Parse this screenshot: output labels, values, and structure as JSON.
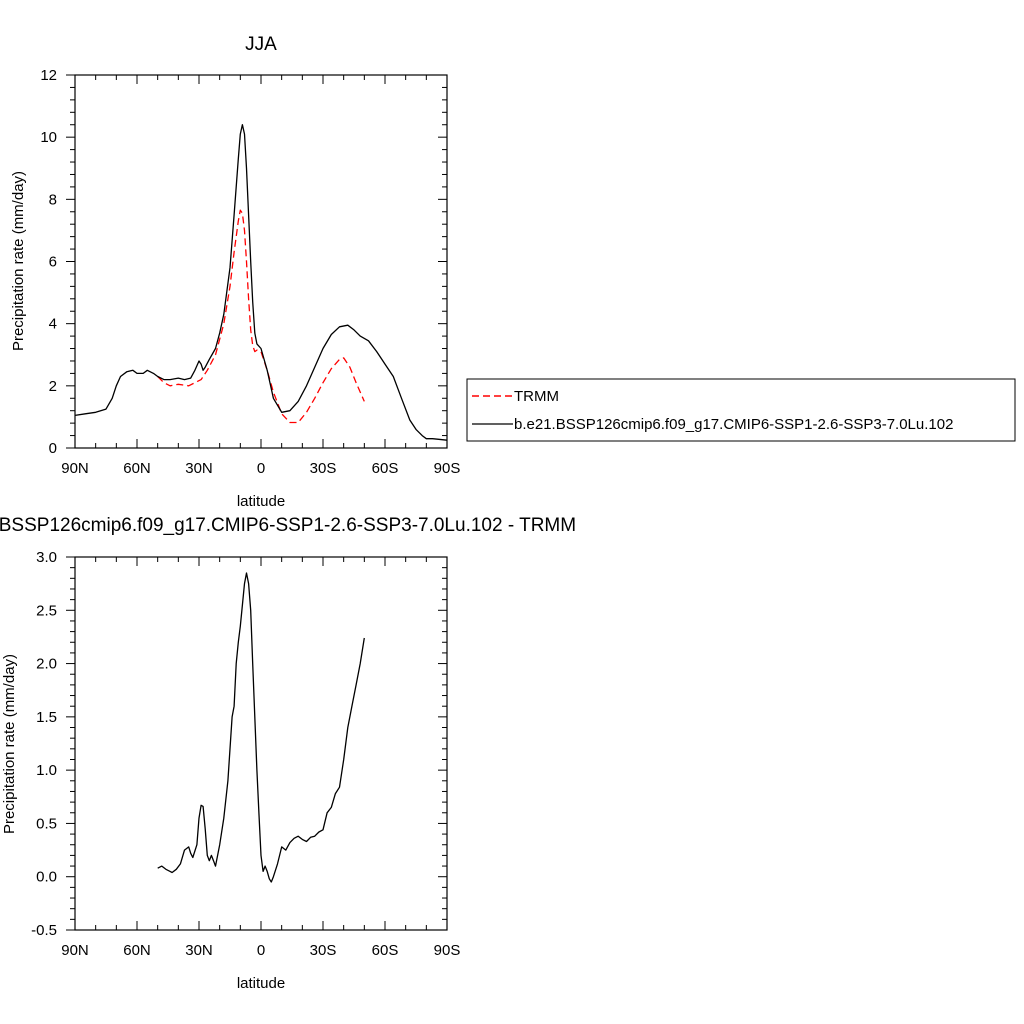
{
  "chart_data": [
    {
      "type": "line",
      "title": "JJA",
      "xlabel": "latitude",
      "ylabel": "Precipitation rate (mm/day)",
      "xlim": [
        90,
        -90
      ],
      "ylim": [
        0,
        12
      ],
      "x_ticks": [
        90,
        60,
        30,
        0,
        -30,
        -60,
        -90
      ],
      "x_tick_labels": [
        "90N",
        "60N",
        "30N",
        "0",
        "30S",
        "60S",
        "90S"
      ],
      "y_ticks": [
        0,
        2,
        4,
        6,
        8,
        10,
        12
      ],
      "y_tick_labels": [
        "0",
        "2",
        "4",
        "6",
        "8",
        "10",
        "12"
      ],
      "legend_position": "right",
      "series": [
        {
          "name": "TRMM",
          "style": "dashed",
          "color": "#ff0000",
          "x": [
            50,
            47,
            44,
            40,
            35,
            32,
            29,
            26,
            22,
            18,
            15,
            13,
            11,
            10,
            9,
            8,
            7,
            6,
            5,
            4,
            3,
            2,
            0,
            -3,
            -6,
            -10,
            -14,
            -18,
            -22,
            -26,
            -30,
            -34,
            -38,
            -40,
            -43,
            -46,
            -50
          ],
          "y": [
            2.3,
            2.1,
            2.0,
            2.05,
            2.0,
            2.1,
            2.2,
            2.5,
            3.0,
            4.0,
            5.2,
            6.3,
            7.3,
            7.65,
            7.55,
            7.0,
            6.0,
            4.8,
            3.8,
            3.3,
            3.1,
            3.15,
            3.1,
            2.5,
            1.8,
            1.1,
            0.82,
            0.82,
            1.15,
            1.6,
            2.1,
            2.55,
            2.85,
            2.9,
            2.6,
            2.1,
            1.5
          ]
        },
        {
          "name": "b.e21.BSSP126cmip6.f09_g17.CMIP6-SSP1-2.6-SSP3-7.0Lu.102",
          "style": "solid",
          "color": "#000000",
          "x": [
            90,
            85,
            80,
            75,
            72,
            70,
            68,
            65,
            62,
            60,
            57,
            55,
            52,
            50,
            47,
            44,
            40,
            37,
            34,
            32,
            30,
            29,
            28,
            27,
            25,
            22,
            20,
            18,
            15,
            13,
            11,
            10,
            9,
            8,
            7,
            6,
            5,
            4,
            3,
            2,
            0,
            -3,
            -6,
            -10,
            -14,
            -18,
            -22,
            -26,
            -30,
            -34,
            -38,
            -42,
            -45,
            -48,
            -52,
            -56,
            -60,
            -64,
            -68,
            -72,
            -75,
            -78,
            -80,
            -83,
            -86,
            -90
          ],
          "y": [
            1.05,
            1.1,
            1.15,
            1.25,
            1.6,
            2.0,
            2.3,
            2.45,
            2.5,
            2.4,
            2.4,
            2.5,
            2.4,
            2.3,
            2.2,
            2.2,
            2.25,
            2.2,
            2.25,
            2.5,
            2.8,
            2.7,
            2.5,
            2.6,
            2.85,
            3.2,
            3.7,
            4.3,
            5.8,
            7.5,
            9.3,
            10.1,
            10.4,
            10.1,
            9.0,
            7.5,
            6.0,
            4.7,
            3.7,
            3.35,
            3.2,
            2.5,
            1.6,
            1.15,
            1.2,
            1.5,
            2.0,
            2.6,
            3.2,
            3.65,
            3.9,
            3.95,
            3.8,
            3.6,
            3.45,
            3.1,
            2.7,
            2.3,
            1.6,
            0.9,
            0.6,
            0.4,
            0.3,
            0.3,
            0.28,
            0.25
          ]
        }
      ]
    },
    {
      "type": "line",
      "title": "b.e21.BSSP126cmip6.f09_g17.CMIP6-SSP1-2.6-SSP3-7.0Lu.102 - TRMM",
      "xlabel": "latitude",
      "ylabel": "Precipitation rate (mm/day)",
      "xlim": [
        90,
        -90
      ],
      "ylim": [
        -0.5,
        3.0
      ],
      "x_ticks": [
        90,
        60,
        30,
        0,
        -30,
        -60,
        -90
      ],
      "x_tick_labels": [
        "90N",
        "60N",
        "30N",
        "0",
        "30S",
        "60S",
        "90S"
      ],
      "y_ticks": [
        -0.5,
        0.0,
        0.5,
        1.0,
        1.5,
        2.0,
        2.5,
        3.0
      ],
      "y_tick_labels": [
        "-0.5",
        "0.0",
        "0.5",
        "1.0",
        "1.5",
        "2.0",
        "2.5",
        "3.0"
      ],
      "series": [
        {
          "name": "",
          "style": "solid",
          "color": "#000000",
          "x": [
            50,
            48,
            46,
            44,
            43,
            41,
            39,
            37,
            35,
            34,
            33,
            31,
            30,
            29,
            28,
            27,
            26,
            25,
            24,
            23,
            22,
            20,
            18,
            16,
            14,
            13,
            12,
            11,
            10,
            9,
            8,
            7,
            6,
            5,
            4,
            3,
            2,
            1,
            0,
            -1,
            -2,
            -3,
            -4,
            -5,
            -6,
            -8,
            -10,
            -12,
            -14,
            -16,
            -18,
            -20,
            -22,
            -24,
            -26,
            -28,
            -30,
            -32,
            -34,
            -36,
            -38,
            -40,
            -42,
            -44,
            -46,
            -48,
            -50
          ],
          "y": [
            0.08,
            0.1,
            0.07,
            0.05,
            0.04,
            0.07,
            0.12,
            0.25,
            0.28,
            0.22,
            0.18,
            0.3,
            0.55,
            0.67,
            0.66,
            0.45,
            0.2,
            0.15,
            0.2,
            0.15,
            0.1,
            0.3,
            0.55,
            0.9,
            1.5,
            1.6,
            2.0,
            2.2,
            2.35,
            2.55,
            2.75,
            2.85,
            2.75,
            2.5,
            2.0,
            1.5,
            1.0,
            0.6,
            0.2,
            0.05,
            0.1,
            0.05,
            -0.02,
            -0.05,
            0.0,
            0.12,
            0.28,
            0.25,
            0.32,
            0.36,
            0.38,
            0.35,
            0.33,
            0.37,
            0.38,
            0.42,
            0.44,
            0.6,
            0.65,
            0.78,
            0.84,
            1.1,
            1.4,
            1.6,
            1.8,
            2.0,
            2.24
          ]
        }
      ]
    }
  ]
}
